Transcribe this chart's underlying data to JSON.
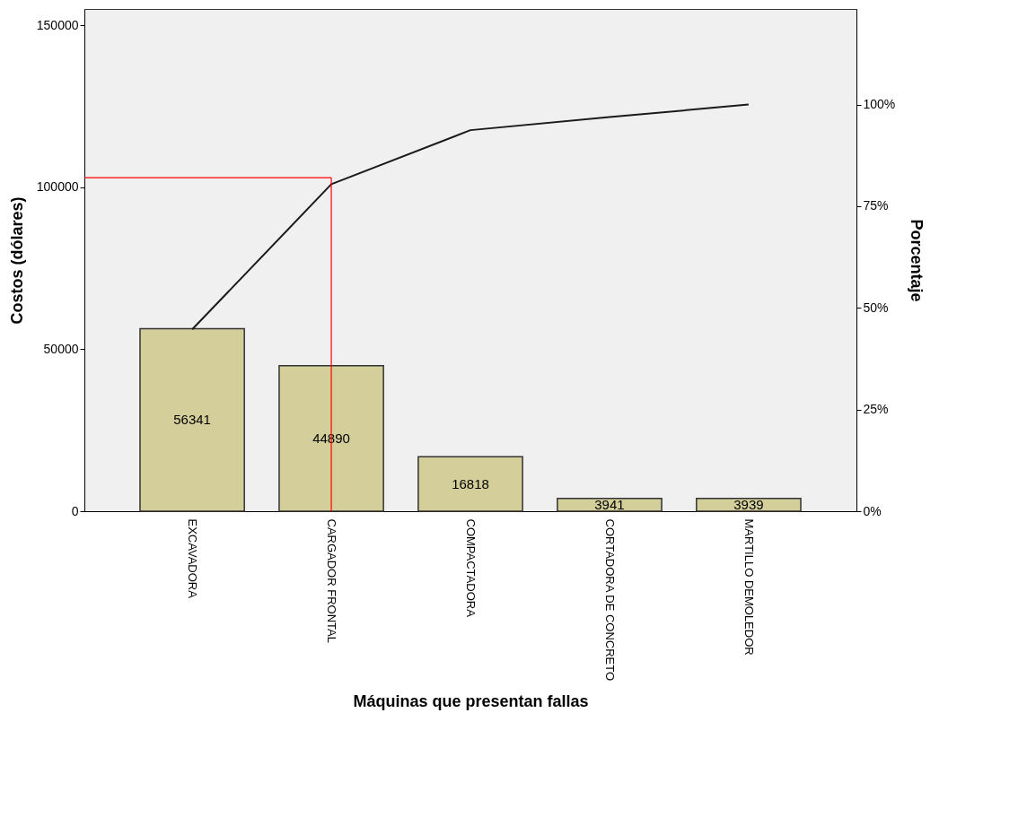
{
  "chart_data": {
    "type": "bar",
    "xlabel": "Máquinas que presentan fallas",
    "ylabel": "Costos (dólares)",
    "y2label": "Porcentaje",
    "categories": [
      "EXCAVADORA",
      "CARGADOR FRONTAL",
      "COMPACTADORA",
      "CORTADORA DE CONCRETO",
      "MARTILLO DEMOLEDOR"
    ],
    "series": [
      {
        "color": "#d3ce9a",
        "values": [
          56341,
          44890,
          16818,
          3941,
          3939
        ],
        "value_labels": [
          "56341",
          "44890",
          "16818",
          "3941",
          "3939"
        ]
      },
      {
        "type": "line",
        "axis": "y2",
        "color": "#1a1a1a",
        "values": [
          44.7,
          80.4,
          93.7,
          96.9,
          100
        ]
      }
    ],
    "ylim": [
      0,
      155000
    ],
    "yticks": [
      0,
      50000,
      100000,
      150000
    ],
    "y2lim": [
      0,
      123.5
    ],
    "y2ticks": [
      {
        "value": 0,
        "label": "0%"
      },
      {
        "value": 25,
        "label": "25%"
      },
      {
        "value": 50,
        "label": "50%"
      },
      {
        "value": 75,
        "label": "75%"
      },
      {
        "value": 100,
        "label": "100%"
      }
    ],
    "ref_lines": [
      {
        "axis": "y2",
        "value": 82,
        "color": "#ff0000"
      },
      {
        "axis": "x",
        "value": "CARGADOR FRONTAL",
        "color": "#ff0000"
      }
    ],
    "grid": false,
    "marker": "none"
  }
}
